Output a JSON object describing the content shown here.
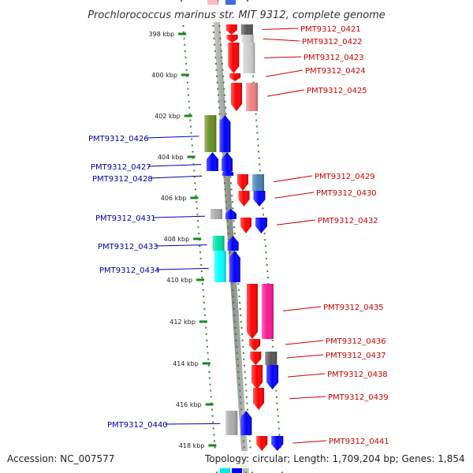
{
  "title": "Prochlorococcus marinus str. MIT 9312, complete genome",
  "footer": {
    "accession": "Accession: NC_007577",
    "summary": "Topology: circular; Length: 1,709,204 bp; Genes: 1,854"
  },
  "colors": {
    "forward_label": "#cc0000",
    "reverse_label": "#0000aa",
    "axis": "#999999",
    "tick": "#1a8a1a"
  },
  "scale": {
    "labels": [
      "398 kbp",
      "400 kbp",
      "402 kbp",
      "404 kbp",
      "406 kbp",
      "408 kbp",
      "410 kbp",
      "412 kbp",
      "414 kbp",
      "416 kbp",
      "418 kbp"
    ]
  },
  "genes": [
    {
      "id": "PMT9312_0421",
      "strand": "+",
      "color": "#ff0000",
      "gc": "#555555"
    },
    {
      "id": "PMT9312_0422",
      "strand": "+",
      "color": "#ff0000",
      "gc": "#cccccc"
    },
    {
      "id": "PMT9312_0423",
      "strand": "+",
      "color": "#ff0000",
      "gc": "#cccccc"
    },
    {
      "id": "PMT9312_0424",
      "strand": "+",
      "color": "#ff0000",
      "gc": ""
    },
    {
      "id": "PMT9312_0425",
      "strand": "+",
      "color": "#ff0000",
      "gc": "#f08080"
    },
    {
      "id": "PMT9312_0426",
      "strand": "-",
      "color": "#0000ff",
      "gc": "#6b8e23"
    },
    {
      "id": "PMT9312_0427",
      "strand": "-",
      "color": "#0000ff",
      "gc": "#0000ff"
    },
    {
      "id": "PMT9312_0428",
      "strand": "-",
      "color": "#0000ff",
      "gc": ""
    },
    {
      "id": "PMT9312_0429",
      "strand": "+",
      "color": "#ff0000",
      "gc": "#4682b4"
    },
    {
      "id": "PMT9312_0430",
      "strand": "+",
      "color": "#ff0000",
      "gc": "#0000ff"
    },
    {
      "id": "PMT9312_0431",
      "strand": "-",
      "color": "#0000ff",
      "gc": "#aaaaaa"
    },
    {
      "id": "PMT9312_0432",
      "strand": "+",
      "color": "#ff0000",
      "gc": "#0000ff"
    },
    {
      "id": "PMT9312_0433",
      "strand": "-",
      "color": "#0000ff",
      "gc": "#00e0a0"
    },
    {
      "id": "PMT9312_0434",
      "strand": "-",
      "color": "#0000ff",
      "gc": "#00ffff"
    },
    {
      "id": "PMT9312_0435",
      "strand": "+",
      "color": "#ff0000",
      "gc": "#ff1493"
    },
    {
      "id": "PMT9312_0436",
      "strand": "+",
      "color": "#ff0000",
      "gc": ""
    },
    {
      "id": "PMT9312_0437",
      "strand": "+",
      "color": "#ff0000",
      "gc": "#555555"
    },
    {
      "id": "PMT9312_0438",
      "strand": "+",
      "color": "#ff0000",
      "gc": "#0000ff"
    },
    {
      "id": "PMT9312_0439",
      "strand": "+",
      "color": "#ff0000",
      "gc": ""
    },
    {
      "id": "PMT9312_0440",
      "strand": "-",
      "color": "#0000ff",
      "gc": "#aaaaaa"
    },
    {
      "id": "PMT9312_0441",
      "strand": "+",
      "color": "#ff0000",
      "gc": "#0000ff"
    }
  ]
}
